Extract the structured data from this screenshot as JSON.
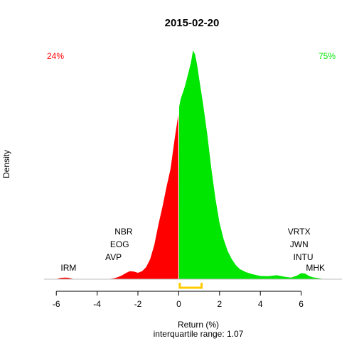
{
  "chart_data": {
    "type": "area",
    "title": "2015-02-20",
    "xlabel": "Return (%)",
    "ylabel": "Density",
    "subtitle": "interquartile range: 1.07",
    "xlim": [
      -6.6,
      8.0
    ],
    "x_ticks": [
      -6,
      -4,
      -2,
      0,
      2,
      4,
      6
    ],
    "split_at": 0,
    "negative_share_label": "24%",
    "positive_share_label": "75%",
    "negative_color": "#ff0000",
    "positive_color": "#00e600",
    "iqr_color": "#ffcc00",
    "iqr": [
      0.05,
      1.12
    ],
    "density_curve": {
      "x": [
        -6.6,
        -6.0,
        -5.8,
        -5.6,
        -5.4,
        -5.2,
        -5.0,
        -4.5,
        -4.0,
        -3.5,
        -3.2,
        -3.0,
        -2.8,
        -2.6,
        -2.4,
        -2.2,
        -2.0,
        -1.8,
        -1.6,
        -1.4,
        -1.2,
        -1.0,
        -0.8,
        -0.6,
        -0.4,
        -0.2,
        -0.02,
        0.02,
        0.1,
        0.2,
        0.3,
        0.4,
        0.5,
        0.6,
        0.7,
        0.8,
        0.9,
        1.0,
        1.2,
        1.4,
        1.6,
        1.8,
        2.0,
        2.2,
        2.4,
        2.6,
        2.8,
        3.0,
        3.3,
        3.6,
        4.0,
        4.4,
        4.8,
        5.2,
        5.5,
        5.8,
        6.0,
        6.2,
        6.4,
        6.6,
        6.8,
        7.0,
        7.4,
        8.0
      ],
      "y": [
        0.0,
        0.001,
        0.006,
        0.008,
        0.007,
        0.002,
        0.0,
        0.0,
        0.0,
        0.0,
        0.004,
        0.01,
        0.018,
        0.03,
        0.04,
        0.038,
        0.032,
        0.04,
        0.06,
        0.1,
        0.17,
        0.27,
        0.36,
        0.46,
        0.55,
        0.7,
        0.82,
        0.86,
        0.9,
        0.93,
        0.96,
        1.0,
        1.04,
        1.08,
        1.14,
        1.12,
        1.07,
        1.0,
        0.87,
        0.72,
        0.55,
        0.4,
        0.28,
        0.2,
        0.14,
        0.1,
        0.07,
        0.05,
        0.035,
        0.025,
        0.016,
        0.015,
        0.02,
        0.012,
        0.008,
        0.018,
        0.03,
        0.028,
        0.015,
        0.009,
        0.006,
        0.002,
        0.0,
        0.0
      ]
    },
    "ticker_labels": [
      {
        "label": "IRM",
        "x": -5.4,
        "row": 1
      },
      {
        "label": "AVP",
        "x": -3.2,
        "row": 2
      },
      {
        "label": "EOG",
        "x": -2.9,
        "row": 3
      },
      {
        "label": "NBR",
        "x": -2.7,
        "row": 4
      },
      {
        "label": "VRTX",
        "x": 5.9,
        "row": 4
      },
      {
        "label": "JWN",
        "x": 5.9,
        "row": 3
      },
      {
        "label": "INTU",
        "x": 6.1,
        "row": 2
      },
      {
        "label": "MHK",
        "x": 6.7,
        "row": 1
      }
    ]
  }
}
